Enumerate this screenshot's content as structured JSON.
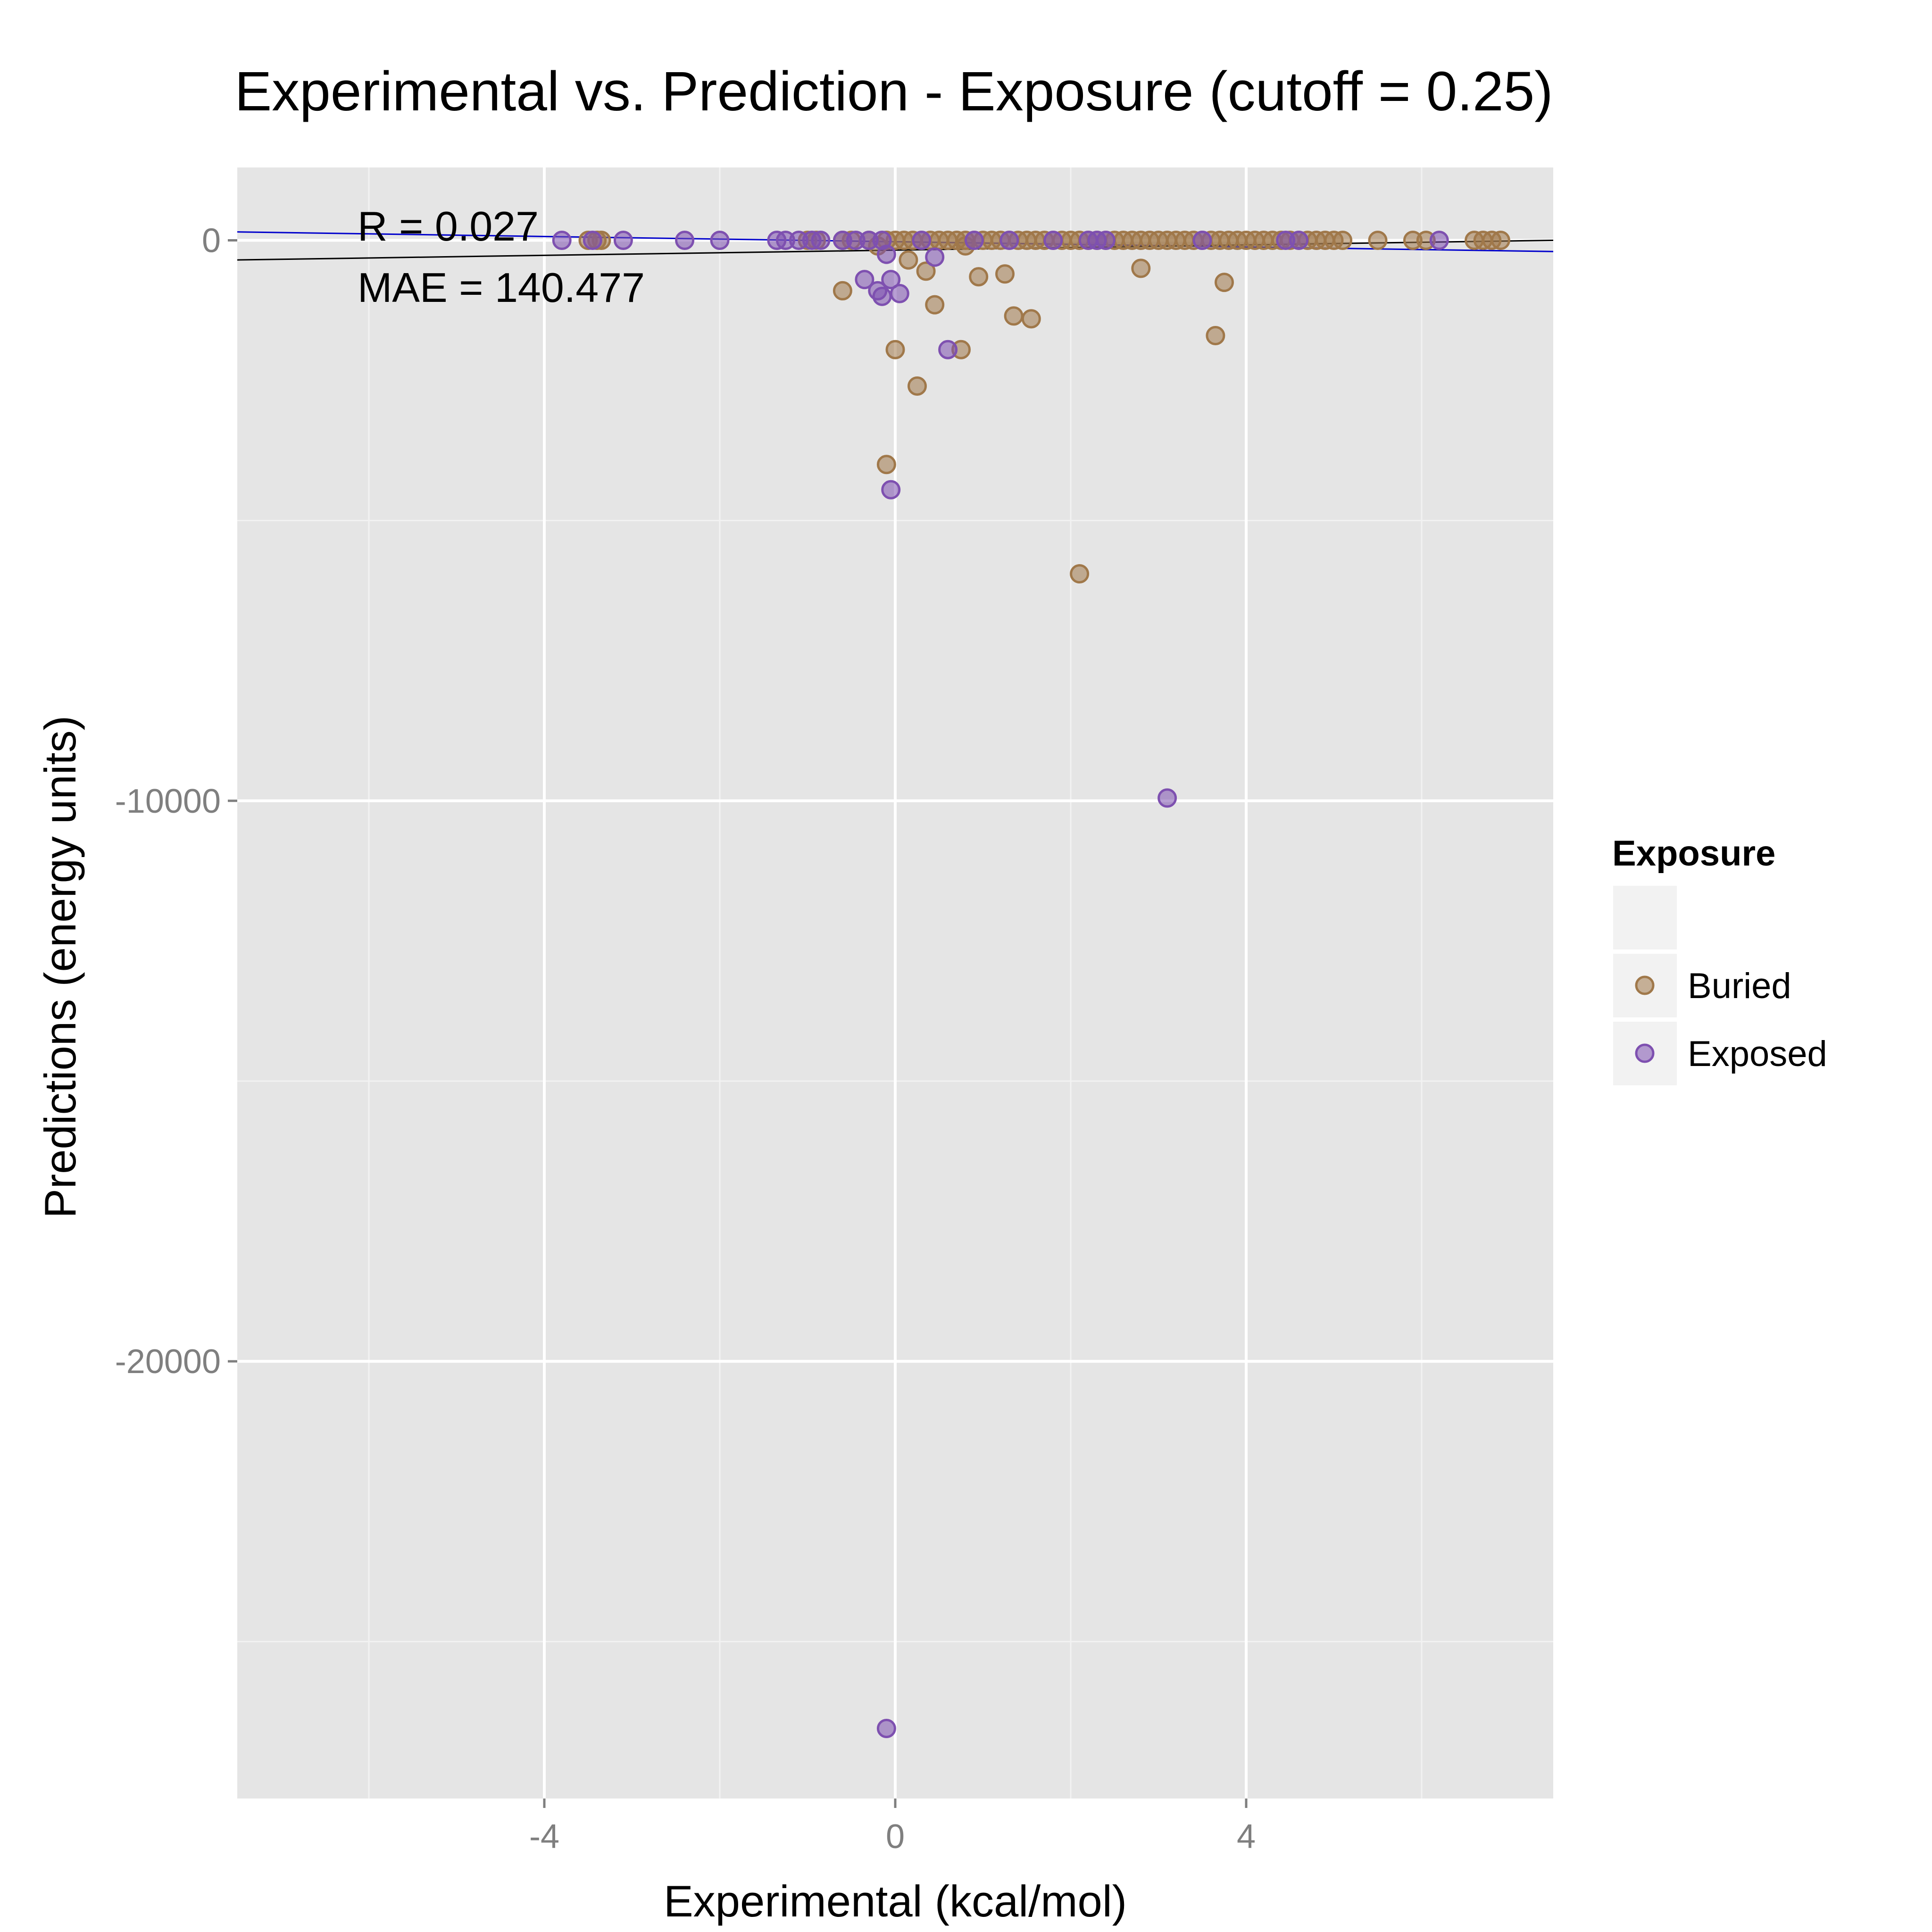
{
  "chart_data": {
    "type": "scatter",
    "title": "Experimental vs. Prediction - Exposure (cutoff = 0.25)",
    "xlabel": "Experimental (kcal/mol)",
    "ylabel": "Predictions (energy units)",
    "xlim": [
      -7.5,
      7.5
    ],
    "ylim": [
      -27800,
      1300
    ],
    "x_ticks": [
      -4,
      0,
      4
    ],
    "x_tick_labels": [
      "-4",
      "0",
      "4"
    ],
    "y_ticks": [
      0,
      -10000,
      -20000
    ],
    "y_tick_labels": [
      "0",
      "-10000",
      "-20000"
    ],
    "grid": true,
    "legend": {
      "title": "Exposure",
      "position": "right"
    },
    "annotations": [
      "R = 0.027",
      "MAE = 140.477"
    ],
    "fit_lines": [
      {
        "color": "#0000cc",
        "points": [
          [
            -7.5,
            150
          ],
          [
            7.5,
            -200
          ]
        ]
      },
      {
        "color": "#000000",
        "points": [
          [
            -7.5,
            -350
          ],
          [
            7.5,
            0
          ]
        ]
      }
    ],
    "series": [
      {
        "name": "Buried",
        "color": "#a0784a",
        "points": [
          [
            -3.5,
            0
          ],
          [
            -3.4,
            0
          ],
          [
            -3.35,
            0
          ],
          [
            -1.0,
            0
          ],
          [
            -0.9,
            0
          ],
          [
            -0.6,
            0
          ],
          [
            -0.5,
            0
          ],
          [
            -0.3,
            0
          ],
          [
            -0.2,
            -100
          ],
          [
            -0.1,
            0
          ],
          [
            0.0,
            0
          ],
          [
            0.1,
            0
          ],
          [
            0.2,
            0
          ],
          [
            0.3,
            0
          ],
          [
            0.4,
            0
          ],
          [
            0.5,
            0
          ],
          [
            0.6,
            0
          ],
          [
            0.7,
            0
          ],
          [
            0.8,
            0
          ],
          [
            0.9,
            0
          ],
          [
            1.0,
            0
          ],
          [
            1.1,
            0
          ],
          [
            1.2,
            0
          ],
          [
            1.3,
            0
          ],
          [
            1.4,
            0
          ],
          [
            1.5,
            0
          ],
          [
            1.6,
            0
          ],
          [
            1.7,
            0
          ],
          [
            1.8,
            0
          ],
          [
            1.9,
            0
          ],
          [
            2.0,
            0
          ],
          [
            2.1,
            0
          ],
          [
            2.2,
            0
          ],
          [
            2.3,
            0
          ],
          [
            2.4,
            0
          ],
          [
            2.5,
            0
          ],
          [
            2.6,
            0
          ],
          [
            2.7,
            0
          ],
          [
            2.8,
            0
          ],
          [
            2.9,
            0
          ],
          [
            3.0,
            0
          ],
          [
            3.1,
            0
          ],
          [
            3.2,
            0
          ],
          [
            3.3,
            0
          ],
          [
            3.4,
            0
          ],
          [
            3.5,
            0
          ],
          [
            3.6,
            0
          ],
          [
            3.7,
            0
          ],
          [
            3.8,
            0
          ],
          [
            3.9,
            0
          ],
          [
            4.0,
            0
          ],
          [
            4.1,
            0
          ],
          [
            4.2,
            0
          ],
          [
            4.3,
            0
          ],
          [
            4.4,
            0
          ],
          [
            4.5,
            0
          ],
          [
            4.6,
            0
          ],
          [
            4.7,
            0
          ],
          [
            4.8,
            0
          ],
          [
            4.9,
            0
          ],
          [
            5.0,
            0
          ],
          [
            5.1,
            0
          ],
          [
            5.5,
            0
          ],
          [
            5.9,
            0
          ],
          [
            6.05,
            0
          ],
          [
            6.6,
            0
          ],
          [
            6.7,
            0
          ],
          [
            6.8,
            0
          ],
          [
            6.9,
            0
          ],
          [
            0.8,
            -100
          ],
          [
            0.15,
            -350
          ],
          [
            0.35,
            -550
          ],
          [
            1.25,
            -600
          ],
          [
            0.95,
            -650
          ],
          [
            2.8,
            -500
          ],
          [
            3.75,
            -750
          ],
          [
            -0.6,
            -900
          ],
          [
            0.45,
            -1150
          ],
          [
            1.35,
            -1350
          ],
          [
            1.55,
            -1400
          ],
          [
            3.65,
            -1700
          ],
          [
            0.0,
            -1950
          ],
          [
            0.75,
            -1950
          ],
          [
            0.25,
            -2600
          ],
          [
            -0.1,
            -4000
          ],
          [
            2.1,
            -5950
          ]
        ]
      },
      {
        "name": "Exposed",
        "color": "#7e50b0",
        "points": [
          [
            -3.8,
            0
          ],
          [
            -3.45,
            0
          ],
          [
            -3.1,
            0
          ],
          [
            -2.4,
            0
          ],
          [
            -2.0,
            0
          ],
          [
            -1.35,
            0
          ],
          [
            -1.25,
            0
          ],
          [
            -1.1,
            0
          ],
          [
            -0.95,
            0
          ],
          [
            -0.85,
            0
          ],
          [
            -0.6,
            0
          ],
          [
            -0.45,
            0
          ],
          [
            -0.3,
            0
          ],
          [
            -0.15,
            0
          ],
          [
            0.3,
            0
          ],
          [
            0.9,
            0
          ],
          [
            1.3,
            0
          ],
          [
            1.8,
            0
          ],
          [
            2.2,
            0
          ],
          [
            2.3,
            0
          ],
          [
            2.4,
            0
          ],
          [
            3.5,
            0
          ],
          [
            4.45,
            0
          ],
          [
            4.6,
            0
          ],
          [
            6.2,
            0
          ],
          [
            -0.1,
            -250
          ],
          [
            0.45,
            -300
          ],
          [
            -0.05,
            -700
          ],
          [
            -0.35,
            -700
          ],
          [
            -0.2,
            -900
          ],
          [
            0.05,
            -950
          ],
          [
            -0.15,
            -1000
          ],
          [
            0.6,
            -1950
          ],
          [
            -0.05,
            -4450
          ],
          [
            3.1,
            -9950
          ],
          [
            -0.1,
            -26550
          ]
        ]
      }
    ]
  }
}
